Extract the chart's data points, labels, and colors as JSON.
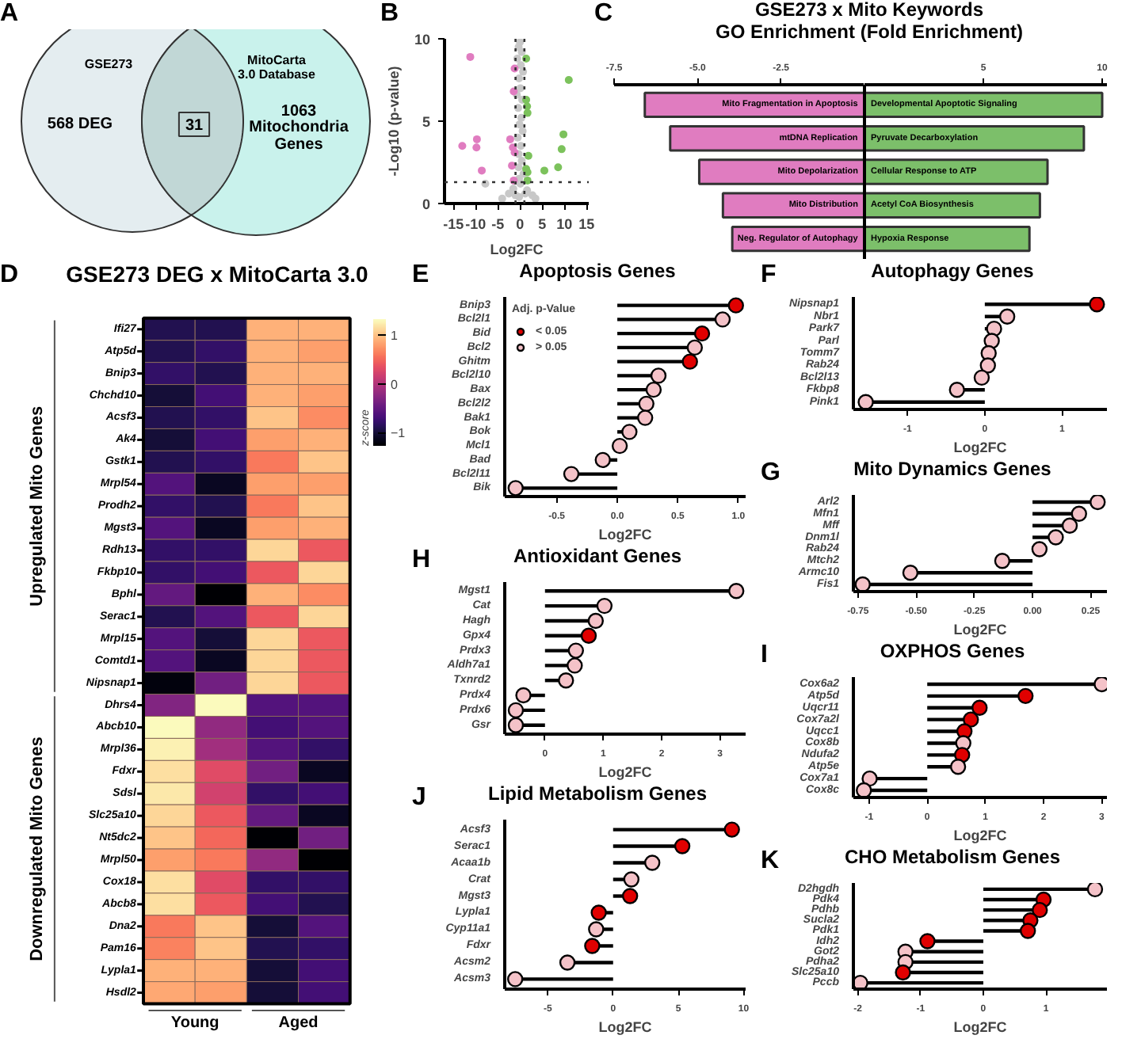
{
  "chart_data": [
    {
      "type": "other",
      "categories": [
        "GSE273",
        "MitoCarta\n3.0 Database"
      ],
      "values": [
        568,
        1063
      ],
      "value_labels": [
        "568 DEG",
        "1063\nMitochondria\nGenes"
      ],
      "colors": [
        "#e4edf0",
        "#c9f2ec"
      ],
      "annotations": [
        "A",
        "31"
      ]
    },
    {
      "type": "scatter",
      "xlabel": "Log2FC",
      "ylabel": "-Log10 (p-value)",
      "xlim": [
        -17,
        15.5
      ],
      "ylim": [
        0,
        10
      ],
      "xticks": [
        -15,
        -10,
        -5,
        0,
        5,
        10,
        15
      ],
      "yticks": [
        0,
        5,
        10
      ],
      "marker": "circle",
      "annotations": [
        "B"
      ],
      "ref_lines": [
        {
          "axis": "x",
          "value": -1,
          "line_style": "dotted"
        },
        {
          "axis": "x",
          "value": 1,
          "line_style": "dotted"
        },
        {
          "axis": "y",
          "value": 1.3,
          "line_style": "dotted"
        }
      ],
      "series": [
        {
          "color": "#c8c8c8",
          "x": [
            0,
            -0.3,
            0.4,
            -0.6,
            0.2,
            0.7,
            -0.2,
            0.1,
            -0.7,
            0.5,
            -0.4,
            0.3,
            -0.1,
            0.6,
            -0.5,
            0.2,
            -0.3,
            0.4,
            -0.3,
            0.8,
            -0.2,
            0.1,
            -1.5,
            1.6,
            -2.5,
            2.8,
            -4,
            3.5,
            -7.8,
            -0.2,
            -1,
            1.2
          ],
          "values": [
            9.8,
            9.5,
            9.2,
            8.8,
            8.4,
            8,
            7.6,
            7,
            6.6,
            6.3,
            5.8,
            5.2,
            4.8,
            4.4,
            4,
            3.5,
            3,
            2.6,
            2.2,
            1.8,
            1.5,
            1.2,
            0.9,
            0.8,
            0.6,
            0.5,
            0.3,
            0.3,
            1.2,
            0.4,
            0.5,
            0.6
          ]
        },
        {
          "color": "#e07cc0",
          "x": [
            -11.2,
            -13,
            -9.7,
            -9.8,
            -8.6,
            -1.2,
            -1.4,
            -2.2,
            -1.6,
            -1.2,
            -1.8,
            -1.4
          ],
          "values": [
            8.9,
            3.5,
            3.9,
            3.4,
            2,
            8.2,
            6.8,
            3.9,
            3.4,
            3.1,
            2.3,
            1.4
          ]
        },
        {
          "color": "#7cc25c",
          "x": [
            1.4,
            1.4,
            1.6,
            1.7,
            1.9,
            1.4,
            1.7,
            1.7,
            11,
            9.8,
            9.4,
            8.6,
            5.5
          ],
          "values": [
            8.8,
            6.3,
            5.9,
            5.5,
            2.9,
            2.1,
            1.9,
            1.4,
            7.5,
            4.2,
            3.3,
            2.2,
            2
          ]
        }
      ]
    },
    {
      "type": "bar",
      "orientation": "horizontal",
      "title": "GSE273 x Mito Keywords\nGO Enrichment (Fold Enrichment)",
      "annotations": [
        "C"
      ],
      "categories": [
        "Mito Fragmentation in Apoptosis",
        "mtDNA Replication",
        "Mito Depolarization",
        "Mito Distribution",
        "Neg. Regulator of Autophagy"
      ],
      "xlim": [
        -7.5,
        0
      ],
      "xticks": [
        {
          "value": -7.5,
          "label": "-7.5"
        },
        {
          "value": -5,
          "label": "-5.0"
        },
        {
          "value": -2.5,
          "label": "-2.5"
        }
      ],
      "color": "#e07cc0",
      "values": [
        -6.58,
        -5.82,
        -4.95,
        -4.24,
        -3.96
      ]
    },
    {
      "type": "bar",
      "orientation": "horizontal",
      "categories": [
        "Developmental Apoptotic Signaling",
        "Pyruvate Decarboxylation",
        "Cellular Response to ATP",
        "Acetyl CoA Biosynthesis",
        "Hypoxia Response"
      ],
      "xlim": [
        0,
        10.2
      ],
      "xticks": [
        5,
        10
      ],
      "color": "#7cbf6a",
      "values": [
        10,
        9.23,
        7.7,
        7.38,
        6.94
      ]
    },
    {
      "type": "heatmap",
      "title": "GSE273 DEG x MitoCarta 3.0",
      "annotations": [
        "D",
        "Young",
        "Aged",
        "Upregulated Mito Genes",
        "Downregulated Mito Genes"
      ],
      "categories": [
        null,
        null,
        null,
        null
      ],
      "y_categories": [
        "Ifi27",
        "Atp5d",
        "Bnip3",
        "Chchd10",
        "Acsf3",
        "Ak4",
        "Gstk1",
        "Mrpl54",
        "Prodh2",
        "Mgst3",
        "Rdh13",
        "Fkbp10",
        "Bphl",
        "Serac1",
        "Mrpl15",
        "Comtd1",
        "Nipsnap1",
        "Dhrs4",
        "Abcb10",
        "Mrpl36",
        "Fdxr",
        "Sdsl",
        "Slc25a10",
        "Nt5dc2",
        "Mrpl50",
        "Cox18",
        "Abcb8",
        "Dna2",
        "Pam16",
        "Lypla1",
        "Hsdl2"
      ],
      "cells": [
        [
          -0.9,
          -0.9,
          0.9,
          0.9
        ],
        [
          -0.9,
          -0.8,
          0.9,
          0.8
        ],
        [
          -0.8,
          -0.9,
          0.9,
          0.9
        ],
        [
          -1.0,
          -0.7,
          0.9,
          0.8
        ],
        [
          -0.9,
          -0.8,
          1.0,
          0.7
        ],
        [
          -1.0,
          -0.7,
          0.8,
          0.9
        ],
        [
          -0.9,
          -0.8,
          0.6,
          1.0
        ],
        [
          -0.6,
          -1.1,
          0.8,
          0.8
        ],
        [
          -0.8,
          -0.9,
          0.6,
          1.0
        ],
        [
          -0.6,
          -1.1,
          0.8,
          0.9
        ],
        [
          -0.8,
          -0.8,
          1.1,
          0.4
        ],
        [
          -0.8,
          -0.7,
          0.4,
          1.1
        ],
        [
          -0.5,
          -1.25,
          0.9,
          0.7
        ],
        [
          -0.9,
          -0.6,
          0.4,
          1.1
        ],
        [
          -0.6,
          -1.0,
          1.1,
          0.4
        ],
        [
          -0.6,
          -1.1,
          1.1,
          0.4
        ],
        [
          -1.2,
          -0.4,
          1.1,
          0.4
        ],
        [
          -0.3,
          1.3,
          -0.6,
          -0.6
        ],
        [
          1.3,
          -0.2,
          -0.7,
          -0.6
        ],
        [
          1.25,
          -0.1,
          -0.6,
          -0.8
        ],
        [
          1.15,
          0.3,
          -0.4,
          -1.1
        ],
        [
          1.2,
          0.2,
          -0.8,
          -0.7
        ],
        [
          1.1,
          0.4,
          -0.5,
          -1.1
        ],
        [
          1.0,
          0.5,
          -1.25,
          -0.4
        ],
        [
          0.8,
          0.6,
          -0.2,
          -1.27
        ],
        [
          1.15,
          0.3,
          -0.8,
          -0.8
        ],
        [
          1.15,
          0.4,
          -0.7,
          -0.9
        ],
        [
          0.6,
          1.0,
          -1.0,
          -0.6
        ],
        [
          0.65,
          1.0,
          -0.9,
          -0.8
        ],
        [
          0.9,
          0.9,
          -1.0,
          -0.7
        ],
        [
          0.85,
          0.8,
          -1.0,
          -0.7
        ]
      ],
      "clim": [
        -1.27,
        1.32
      ],
      "cticks": [
        -1,
        0,
        1
      ],
      "clabel": "z-score"
    },
    {
      "type": "lollipop",
      "orientation": "horizontal",
      "title": "Apoptosis Genes",
      "xlabel": "Log2FC",
      "marker": "circle",
      "annotations": [
        "E"
      ],
      "legend": "top left",
      "legend_title": "Adj. p-Value",
      "categories": [
        "Bnip3",
        "Bcl2l1",
        "Bid",
        "Bcl2",
        "Ghitm",
        "Bcl2l10",
        "Bax",
        "Bcl2l2",
        "Bak1",
        "Bok",
        "Mcl1",
        "Bad",
        "Bcl2l11",
        "Bik"
      ],
      "xlim": [
        -0.93,
        1.06
      ],
      "xticks": [
        -0.5,
        {
          "value": 0,
          "label": "0.0"
        },
        0.5,
        {
          "value": 1,
          "label": "1.0"
        }
      ],
      "series": [
        {
          "name": "< 0.05",
          "color": "#e00000",
          "values": [
            0.98,
            null,
            0.7,
            null,
            0.6,
            null,
            null,
            null,
            null,
            null,
            null,
            null,
            null,
            null
          ]
        },
        {
          "name": "> 0.05",
          "color": "#f4c2c8",
          "values": [
            null,
            0.87,
            null,
            0.64,
            null,
            0.34,
            0.3,
            0.24,
            0.23,
            0.1,
            0.02,
            -0.12,
            -0.38,
            -0.84
          ]
        }
      ]
    },
    {
      "type": "lollipop",
      "orientation": "horizontal",
      "title": "Autophagy Genes",
      "xlabel": "Log2FC",
      "marker": "circle",
      "annotations": [
        "F"
      ],
      "categories": [
        "Nipsnap1",
        "Nbr1",
        "Park7",
        "Parl",
        "Tomm7",
        "Rab24",
        "Bcl2l13",
        "Fkbp8",
        "Pink1"
      ],
      "xlim": [
        -1.7,
        1.58
      ],
      "xticks": [
        -1,
        0,
        1
      ],
      "values": [
        1.45,
        0.29,
        0.12,
        0.09,
        0.05,
        0.04,
        -0.04,
        -0.36,
        -1.54
      ],
      "colors": [
        "#e00000",
        "#f4c2c8",
        "#f4c2c8",
        "#f4c2c8",
        "#f4c2c8",
        "#f4c2c8",
        "#f4c2c8",
        "#f4c2c8",
        "#f4c2c8"
      ]
    },
    {
      "type": "lollipop",
      "orientation": "horizontal",
      "title": "Mito Dynamics Genes",
      "xlabel": "Log2FC",
      "marker": "circle",
      "annotations": [
        "G"
      ],
      "categories": [
        "Arl2",
        "Mfn1",
        "Mff",
        "Dnm1l",
        "Rab24",
        "Mtch2",
        "Armc10",
        "Fis1"
      ],
      "xlim": [
        -0.77,
        0.32
      ],
      "xticks": [
        {
          "value": -0.75,
          "label": "-0.75"
        },
        {
          "value": -0.5,
          "label": "-0.50"
        },
        {
          "value": -0.25,
          "label": "-0.25"
        },
        {
          "value": 0,
          "label": "0.00"
        },
        {
          "value": 0.25,
          "label": "0.25"
        }
      ],
      "values": [
        0.28,
        0.2,
        0.16,
        0.1,
        0.03,
        -0.13,
        -0.525,
        -0.73
      ],
      "colors": [
        "#f4c2c8",
        "#f4c2c8",
        "#f4c2c8",
        "#f4c2c8",
        "#f4c2c8",
        "#f4c2c8",
        "#f4c2c8",
        "#f4c2c8"
      ]
    },
    {
      "type": "lollipop",
      "orientation": "horizontal",
      "title": "Antioxidant Genes",
      "xlabel": "Log2FC",
      "marker": "circle",
      "annotations": [
        "H"
      ],
      "categories": [
        "Mgst1",
        "Cat",
        "Hagh",
        "Gpx4",
        "Prdx3",
        "Aldh7a1",
        "Txnrd2",
        "Prdx4",
        "Prdx6",
        "Gsr"
      ],
      "xlim": [
        -0.69,
        3.44
      ],
      "xticks": [
        0,
        1,
        2,
        3
      ],
      "values": [
        3.28,
        1.02,
        0.87,
        0.75,
        0.53,
        0.51,
        0.36,
        -0.37,
        -0.5,
        -0.5
      ],
      "colors": [
        "#f4c2c8",
        "#f4c2c8",
        "#f4c2c8",
        "#e00000",
        "#f4c2c8",
        "#f4c2c8",
        "#f4c2c8",
        "#f4c2c8",
        "#f4c2c8",
        "#f4c2c8"
      ]
    },
    {
      "type": "lollipop",
      "orientation": "horizontal",
      "title": "OXPHOS Genes",
      "xlabel": "Log2FC",
      "marker": "circle",
      "annotations": [
        "I"
      ],
      "categories": [
        "Cox6a2",
        "Atp5d",
        "Uqcr11",
        "Cox7a2l",
        "Uqcc1",
        "Cox8b",
        "Ndufa2",
        "Atp5e",
        "Cox7a1",
        "Cox8c"
      ],
      "xlim": [
        -1.27,
        3.09
      ],
      "xticks": [
        -1,
        0,
        1,
        2,
        3
      ],
      "values": [
        3.0,
        1.69,
        0.9,
        0.75,
        0.64,
        0.62,
        0.6,
        0.53,
        -0.99,
        -1.09
      ],
      "colors": [
        "#f4c2c8",
        "#e00000",
        "#e00000",
        "#e00000",
        "#e00000",
        "#f4c2c8",
        "#e00000",
        "#f4c2c8",
        "#f4c2c8",
        "#f4c2c8"
      ]
    },
    {
      "type": "lollipop",
      "orientation": "horizontal",
      "title": "Lipid Metabolism Genes",
      "xlabel": "Log2FC",
      "marker": "circle",
      "annotations": [
        "J"
      ],
      "categories": [
        "Acsf3",
        "Serac1",
        "Acaa1b",
        "Crat",
        "Mgst3",
        "Lypla1",
        "Cyp11a1",
        "Fdxr",
        "Acsm2",
        "Acsm3"
      ],
      "xlim": [
        -8.3,
        10.15
      ],
      "xticks": [
        -5,
        0,
        5,
        10
      ],
      "values": [
        9.1,
        5.3,
        3.0,
        1.4,
        1.3,
        -1.1,
        -1.3,
        -1.6,
        -3.5,
        -7.5
      ],
      "colors": [
        "#e00000",
        "#e00000",
        "#f4c2c8",
        "#f4c2c8",
        "#e00000",
        "#e00000",
        "#f4c2c8",
        "#e00000",
        "#f4c2c8",
        "#f4c2c8"
      ]
    },
    {
      "type": "lollipop",
      "orientation": "horizontal",
      "title": "CHO Metabolism Genes",
      "xlabel": "Log2FC",
      "marker": "circle",
      "annotations": [
        "K"
      ],
      "categories": [
        "D2hgdh",
        "Pdk4",
        "Pdhb",
        "Sucla2",
        "Pdk1",
        "Idh2",
        "Got2",
        "Pdha2",
        "Slc25a10",
        "Pccb"
      ],
      "xlim": [
        -2.07,
        1.97
      ],
      "xticks": [
        -2,
        -1,
        0,
        1
      ],
      "values": [
        1.78,
        0.96,
        0.9,
        0.75,
        0.71,
        -0.89,
        -1.24,
        -1.24,
        -1.28,
        -1.96
      ],
      "colors": [
        "#f4c2c8",
        "#e00000",
        "#e00000",
        "#e00000",
        "#e00000",
        "#e00000",
        "#f4c2c8",
        "#f4c2c8",
        "#e00000",
        "#f4c2c8"
      ]
    }
  ]
}
